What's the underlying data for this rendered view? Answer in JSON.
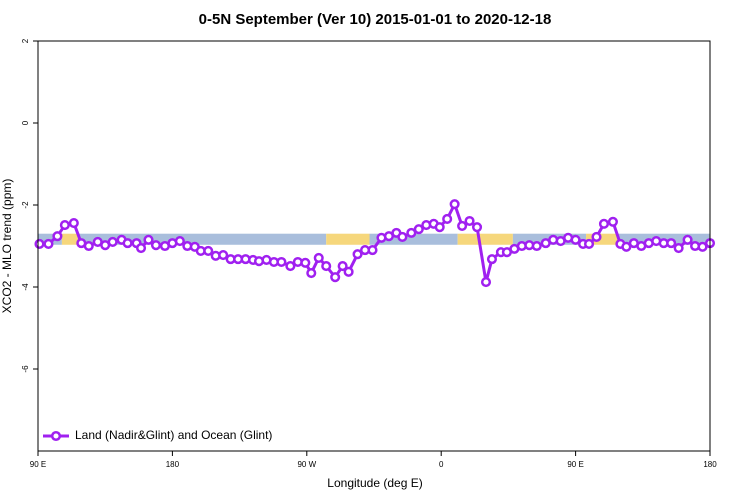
{
  "chart_data": {
    "type": "line",
    "title": "0-5N September (Ver 10)   2015-01-01 to 2020-12-18",
    "x_label": "Longitude (deg E)",
    "y_label": "XCO2 - MLO trend (ppm)",
    "xlim": [
      -270,
      180
    ],
    "ylim": [
      -8,
      2
    ],
    "xticks": [
      {
        "value": -270,
        "label": "90 E"
      },
      {
        "value": -180,
        "label": "180"
      },
      {
        "value": -90,
        "label": "90 W"
      },
      0,
      {
        "value": 90,
        "label": "90 E"
      },
      {
        "value": 180,
        "label": "180"
      }
    ],
    "yticks": [
      2,
      0,
      -2,
      -4,
      -6
    ],
    "legend": "lower left",
    "strip": {
      "y": [
        -2.7,
        -2.97
      ],
      "segments": [
        {
          "x": [
            -270,
            -254
          ],
          "color": "#a9bedc"
        },
        {
          "x": [
            -254,
            -243
          ],
          "color": "#f6d77c"
        },
        {
          "x": [
            -243,
            -77
          ],
          "color": "#a9bedc"
        },
        {
          "x": [
            -77,
            -48
          ],
          "color": "#f6d77c"
        },
        {
          "x": [
            -48,
            11
          ],
          "color": "#a9bedc"
        },
        {
          "x": [
            11,
            48
          ],
          "color": "#f6d77c"
        },
        {
          "x": [
            48,
            97
          ],
          "color": "#a9bedc"
        },
        {
          "x": [
            97,
            118
          ],
          "color": "#f6d77c"
        },
        {
          "x": [
            118,
            180
          ],
          "color": "#a9bedc"
        }
      ]
    },
    "series": [
      {
        "name": "Land (Nadir&Glint) and Ocean (Glint)",
        "color": "#a020f0",
        "x": [
          -269,
          -263,
          -257,
          -252,
          -246,
          -241,
          -236,
          -230,
          -225,
          -220,
          -214,
          -210,
          -204,
          -201,
          -196,
          -191,
          -185,
          -180,
          -175,
          -170,
          -165,
          -161,
          -156,
          -151,
          -146,
          -141,
          -136,
          -131,
          -126,
          -122,
          -117,
          -112,
          -107,
          -101,
          -96,
          -91,
          -87,
          -82,
          -77,
          -71,
          -66,
          -62,
          -56,
          -51,
          -46,
          -40,
          -35,
          -30,
          -26,
          -20,
          -15,
          -10,
          -5,
          -1,
          4,
          9,
          14,
          19,
          24,
          30,
          34,
          40,
          44,
          49,
          54,
          59,
          64,
          70,
          75,
          80,
          85,
          90,
          95,
          99,
          104,
          109,
          115,
          120,
          124,
          129,
          134,
          139,
          144,
          149,
          154,
          159,
          165,
          170,
          175,
          180
        ],
        "values": [
          -2.95,
          -2.95,
          -2.76,
          -2.49,
          -2.44,
          -2.93,
          -3.0,
          -2.9,
          -2.98,
          -2.9,
          -2.85,
          -2.93,
          -2.93,
          -3.05,
          -2.85,
          -2.98,
          -3.0,
          -2.93,
          -2.88,
          -3.0,
          -3.02,
          -3.12,
          -3.12,
          -3.24,
          -3.22,
          -3.32,
          -3.32,
          -3.32,
          -3.34,
          -3.37,
          -3.34,
          -3.39,
          -3.39,
          -3.49,
          -3.39,
          -3.41,
          -3.66,
          -3.29,
          -3.49,
          -3.76,
          -3.49,
          -3.63,
          -3.2,
          -3.1,
          -3.1,
          -2.8,
          -2.76,
          -2.68,
          -2.78,
          -2.68,
          -2.59,
          -2.49,
          -2.46,
          -2.54,
          -2.34,
          -1.98,
          -2.51,
          -2.39,
          -2.54,
          -3.88,
          -3.32,
          -3.15,
          -3.15,
          -3.07,
          -3.0,
          -2.98,
          -3.0,
          -2.93,
          -2.85,
          -2.88,
          -2.8,
          -2.85,
          -2.95,
          -2.95,
          -2.78,
          -2.46,
          -2.41,
          -2.95,
          -3.02,
          -2.93,
          -3.0,
          -2.93,
          -2.88,
          -2.93,
          -2.93,
          -3.05,
          -2.85,
          -3.0,
          -3.02,
          -2.93
        ]
      }
    ]
  }
}
